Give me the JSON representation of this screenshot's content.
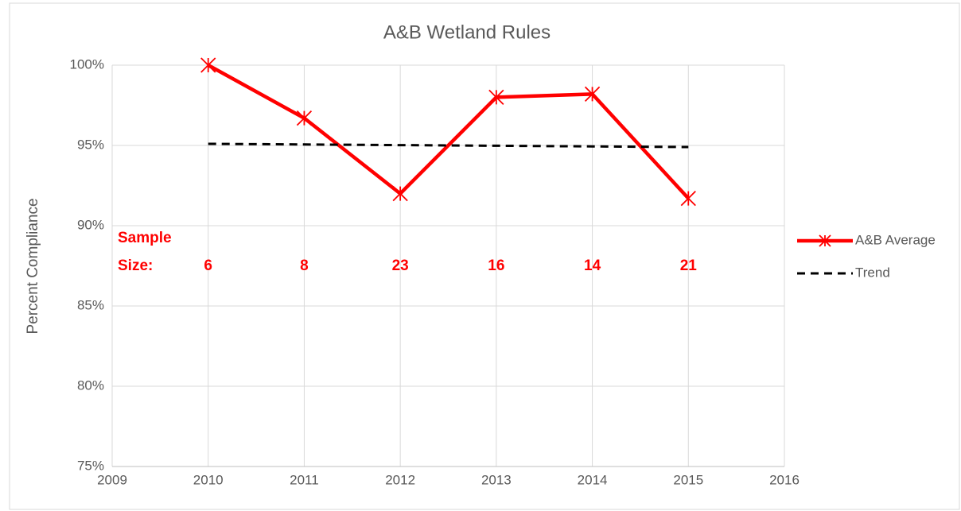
{
  "chart_data": {
    "type": "line",
    "title": "A&B Wetland Rules",
    "y_label": "Percent Compliance",
    "x": [
      2010,
      2011,
      2012,
      2013,
      2014,
      2015
    ],
    "series": [
      {
        "name": "A&B Average",
        "color": "#ff0000",
        "values": [
          100,
          96.7,
          92.0,
          98.0,
          98.2,
          91.7
        ]
      },
      {
        "name": "Trend",
        "color": "#000000",
        "values": [
          95.1,
          95.06,
          95.02,
          94.98,
          94.94,
          94.9
        ]
      }
    ],
    "xlim": [
      2009,
      2016
    ],
    "xticks": [
      2009,
      2010,
      2011,
      2012,
      2013,
      2014,
      2015,
      2016
    ],
    "ylim": [
      75,
      100
    ],
    "yticks": [
      {
        "value": 75,
        "label": "75%"
      },
      {
        "value": 80,
        "label": "80%"
      },
      {
        "value": 85,
        "label": "85%"
      },
      {
        "value": 90,
        "label": "90%"
      },
      {
        "value": 95,
        "label": "95%"
      },
      {
        "value": 100,
        "label": "100%"
      }
    ],
    "grid": true,
    "legend": "right",
    "sample_size_label": [
      "Sample",
      "Size:"
    ],
    "sample_sizes": [
      6,
      8,
      23,
      16,
      14,
      21
    ]
  }
}
